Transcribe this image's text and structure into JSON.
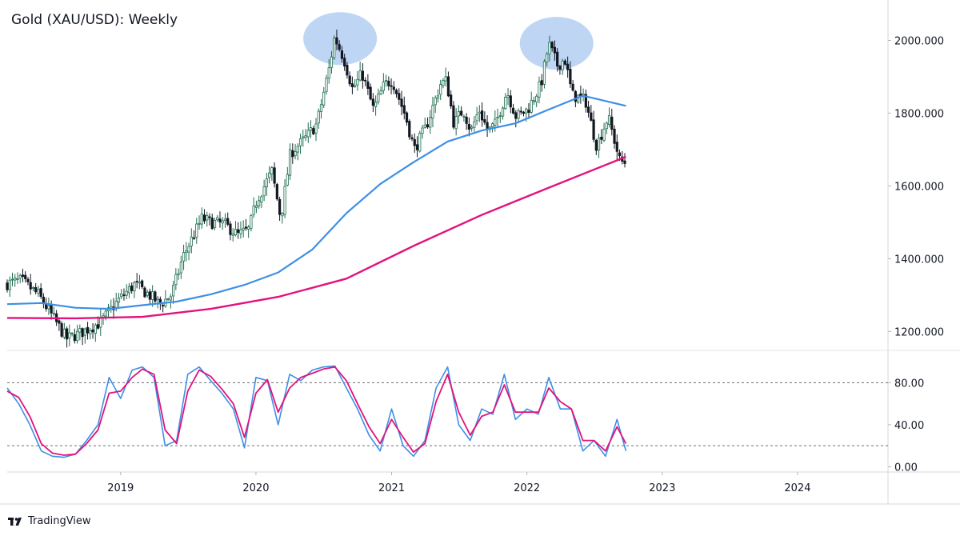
{
  "header": {
    "title": "Gold (XAU/USD): Weekly"
  },
  "footer": {
    "brand_label": "TradingView",
    "brand_icon": "tradingview-logo-icon"
  },
  "colors": {
    "up_candle": "#1e6e4e",
    "down_candle": "#131722",
    "ma_fast": "#3d8fe6",
    "ma_slow": "#e2127c",
    "stoch_k": "#3d8fe6",
    "stoch_d": "#e2127c",
    "highlight": "#a8c8f0"
  },
  "chart_data": [
    {
      "type": "candlestick",
      "title": "Gold (XAU/USD): Weekly",
      "x_range": [
        "2018-03-01",
        "2024-09-01"
      ],
      "ylim": [
        1150,
        2100
      ],
      "y_ticks": [
        "1200.000",
        "1400.000",
        "1600.000",
        "1800.000",
        "2000.000"
      ],
      "x_ticks": [
        "2019",
        "2020",
        "2021",
        "2022",
        "2023",
        "2024"
      ],
      "price_path": [
        [
          "2018-03-01",
          1330
        ],
        [
          "2018-04-15",
          1340
        ],
        [
          "2018-06-01",
          1300
        ],
        [
          "2018-07-15",
          1230
        ],
        [
          "2018-08-15",
          1180
        ],
        [
          "2018-09-20",
          1195
        ],
        [
          "2018-11-15",
          1225
        ],
        [
          "2019-01-01",
          1285
        ],
        [
          "2019-02-15",
          1330
        ],
        [
          "2019-03-20",
          1305
        ],
        [
          "2019-04-25",
          1275
        ],
        [
          "2019-05-25",
          1300
        ],
        [
          "2019-06-25",
          1405
        ],
        [
          "2019-08-15",
          1510
        ],
        [
          "2019-09-10",
          1500
        ],
        [
          "2019-10-15",
          1495
        ],
        [
          "2019-11-20",
          1465
        ],
        [
          "2019-12-20",
          1480
        ],
        [
          "2020-01-10",
          1560
        ],
        [
          "2020-02-20",
          1640
        ],
        [
          "2020-03-15",
          1510
        ],
        [
          "2020-04-10",
          1690
        ],
        [
          "2020-05-20",
          1730
        ],
        [
          "2020-06-20",
          1770
        ],
        [
          "2020-07-25",
          1930
        ],
        [
          "2020-08-07",
          2010
        ],
        [
          "2020-09-01",
          1950
        ],
        [
          "2020-09-25",
          1865
        ],
        [
          "2020-10-20",
          1910
        ],
        [
          "2020-11-20",
          1810
        ],
        [
          "2020-12-20",
          1880
        ],
        [
          "2021-01-10",
          1890
        ],
        [
          "2021-02-15",
          1790
        ],
        [
          "2021-03-10",
          1700
        ],
        [
          "2021-04-10",
          1760
        ],
        [
          "2021-05-20",
          1880
        ],
        [
          "2021-06-05",
          1890
        ],
        [
          "2021-06-25",
          1770
        ],
        [
          "2021-07-20",
          1810
        ],
        [
          "2021-08-10",
          1750
        ],
        [
          "2021-09-01",
          1810
        ],
        [
          "2021-09-25",
          1750
        ],
        [
          "2021-10-15",
          1770
        ],
        [
          "2021-11-15",
          1860
        ],
        [
          "2021-12-10",
          1790
        ],
        [
          "2022-01-10",
          1810
        ],
        [
          "2022-02-15",
          1880
        ],
        [
          "2022-03-08",
          1990
        ],
        [
          "2022-04-01",
          1930
        ],
        [
          "2022-04-20",
          1950
        ],
        [
          "2022-05-10",
          1850
        ],
        [
          "2022-06-15",
          1835
        ],
        [
          "2022-07-15",
          1710
        ],
        [
          "2022-08-15",
          1790
        ],
        [
          "2022-09-01",
          1725
        ],
        [
          "2022-09-15",
          1670
        ],
        [
          "2022-09-25",
          1665
        ]
      ],
      "ma_fast": [
        [
          "2018-03-01",
          1275
        ],
        [
          "2018-06-01",
          1278
        ],
        [
          "2018-09-01",
          1265
        ],
        [
          "2018-12-01",
          1262
        ],
        [
          "2019-03-01",
          1272
        ],
        [
          "2019-06-01",
          1282
        ],
        [
          "2019-09-01",
          1302
        ],
        [
          "2019-12-01",
          1328
        ],
        [
          "2020-03-01",
          1362
        ],
        [
          "2020-06-01",
          1425
        ],
        [
          "2020-09-01",
          1525
        ],
        [
          "2020-12-01",
          1605
        ],
        [
          "2021-03-01",
          1665
        ],
        [
          "2021-06-01",
          1722
        ],
        [
          "2021-09-01",
          1752
        ],
        [
          "2021-12-01",
          1772
        ],
        [
          "2022-03-01",
          1810
        ],
        [
          "2022-06-01",
          1848
        ],
        [
          "2022-09-25",
          1820
        ]
      ],
      "ma_slow": [
        [
          "2018-03-01",
          1237
        ],
        [
          "2018-09-01",
          1236
        ],
        [
          "2019-03-01",
          1240
        ],
        [
          "2019-09-01",
          1262
        ],
        [
          "2020-03-01",
          1295
        ],
        [
          "2020-09-01",
          1345
        ],
        [
          "2021-03-01",
          1435
        ],
        [
          "2021-09-01",
          1520
        ],
        [
          "2022-03-01",
          1595
        ],
        [
          "2022-09-25",
          1680
        ]
      ],
      "highlights": [
        {
          "center": [
            "2020-08-15",
            2005
          ],
          "note": ""
        },
        {
          "center": [
            "2022-03-22",
            1992
          ],
          "note": ""
        }
      ]
    },
    {
      "type": "line",
      "title": "",
      "ylim": [
        -5,
        110
      ],
      "y_ticks": [
        "0.00",
        "40.00",
        "80.00"
      ],
      "levels": [
        80,
        20
      ],
      "series": [
        {
          "key": "k",
          "values": [
            [
              "2018-03-01",
              75
            ],
            [
              "2018-04-01",
              60
            ],
            [
              "2018-05-01",
              40
            ],
            [
              "2018-06-01",
              15
            ],
            [
              "2018-07-01",
              10
            ],
            [
              "2018-08-01",
              9
            ],
            [
              "2018-09-01",
              12
            ],
            [
              "2018-10-01",
              25
            ],
            [
              "2018-11-01",
              40
            ],
            [
              "2018-12-01",
              85
            ],
            [
              "2019-01-01",
              65
            ],
            [
              "2019-02-01",
              92
            ],
            [
              "2019-03-01",
              95
            ],
            [
              "2019-04-01",
              85
            ],
            [
              "2019-05-01",
              20
            ],
            [
              "2019-06-01",
              25
            ],
            [
              "2019-07-01",
              88
            ],
            [
              "2019-08-01",
              95
            ],
            [
              "2019-09-01",
              82
            ],
            [
              "2019-10-01",
              70
            ],
            [
              "2019-11-01",
              55
            ],
            [
              "2019-12-01",
              18
            ],
            [
              "2020-01-01",
              85
            ],
            [
              "2020-02-01",
              82
            ],
            [
              "2020-03-01",
              40
            ],
            [
              "2020-04-01",
              88
            ],
            [
              "2020-05-01",
              82
            ],
            [
              "2020-06-01",
              92
            ],
            [
              "2020-07-01",
              95
            ],
            [
              "2020-08-01",
              96
            ],
            [
              "2020-09-01",
              75
            ],
            [
              "2020-10-01",
              55
            ],
            [
              "2020-11-01",
              30
            ],
            [
              "2020-12-01",
              15
            ],
            [
              "2021-01-01",
              55
            ],
            [
              "2021-02-01",
              20
            ],
            [
              "2021-03-01",
              10
            ],
            [
              "2021-04-01",
              25
            ],
            [
              "2021-05-01",
              75
            ],
            [
              "2021-06-01",
              95
            ],
            [
              "2021-07-01",
              40
            ],
            [
              "2021-08-01",
              25
            ],
            [
              "2021-09-01",
              55
            ],
            [
              "2021-10-01",
              50
            ],
            [
              "2021-11-01",
              88
            ],
            [
              "2021-12-01",
              45
            ],
            [
              "2022-01-01",
              55
            ],
            [
              "2022-02-01",
              50
            ],
            [
              "2022-03-01",
              85
            ],
            [
              "2022-04-01",
              55
            ],
            [
              "2022-05-01",
              55
            ],
            [
              "2022-06-01",
              15
            ],
            [
              "2022-07-01",
              25
            ],
            [
              "2022-08-01",
              10
            ],
            [
              "2022-09-01",
              45
            ],
            [
              "2022-09-25",
              15
            ]
          ]
        },
        {
          "key": "d",
          "values": [
            [
              "2018-03-01",
              72
            ],
            [
              "2018-04-01",
              66
            ],
            [
              "2018-05-01",
              48
            ],
            [
              "2018-06-01",
              22
            ],
            [
              "2018-07-01",
              13
            ],
            [
              "2018-08-01",
              11
            ],
            [
              "2018-09-01",
              12
            ],
            [
              "2018-10-01",
              22
            ],
            [
              "2018-11-01",
              35
            ],
            [
              "2018-12-01",
              70
            ],
            [
              "2019-01-01",
              72
            ],
            [
              "2019-02-01",
              85
            ],
            [
              "2019-03-01",
              93
            ],
            [
              "2019-04-01",
              88
            ],
            [
              "2019-05-01",
              35
            ],
            [
              "2019-06-01",
              22
            ],
            [
              "2019-07-01",
              72
            ],
            [
              "2019-08-01",
              92
            ],
            [
              "2019-09-01",
              86
            ],
            [
              "2019-10-01",
              74
            ],
            [
              "2019-11-01",
              60
            ],
            [
              "2019-12-01",
              28
            ],
            [
              "2020-01-01",
              70
            ],
            [
              "2020-02-01",
              83
            ],
            [
              "2020-03-01",
              52
            ],
            [
              "2020-04-01",
              75
            ],
            [
              "2020-05-01",
              85
            ],
            [
              "2020-06-01",
              89
            ],
            [
              "2020-07-01",
              93
            ],
            [
              "2020-08-01",
              95
            ],
            [
              "2020-09-01",
              82
            ],
            [
              "2020-10-01",
              60
            ],
            [
              "2020-11-01",
              38
            ],
            [
              "2020-12-01",
              22
            ],
            [
              "2021-01-01",
              45
            ],
            [
              "2021-02-01",
              28
            ],
            [
              "2021-03-01",
              14
            ],
            [
              "2021-04-01",
              22
            ],
            [
              "2021-05-01",
              62
            ],
            [
              "2021-06-01",
              88
            ],
            [
              "2021-07-01",
              52
            ],
            [
              "2021-08-01",
              30
            ],
            [
              "2021-09-01",
              48
            ],
            [
              "2021-10-01",
              52
            ],
            [
              "2021-11-01",
              78
            ],
            [
              "2021-12-01",
              52
            ],
            [
              "2022-01-01",
              52
            ],
            [
              "2022-02-01",
              52
            ],
            [
              "2022-03-01",
              75
            ],
            [
              "2022-04-01",
              62
            ],
            [
              "2022-05-01",
              55
            ],
            [
              "2022-06-01",
              25
            ],
            [
              "2022-07-01",
              25
            ],
            [
              "2022-08-01",
              15
            ],
            [
              "2022-09-01",
              38
            ],
            [
              "2022-09-25",
              22
            ]
          ]
        }
      ]
    }
  ]
}
